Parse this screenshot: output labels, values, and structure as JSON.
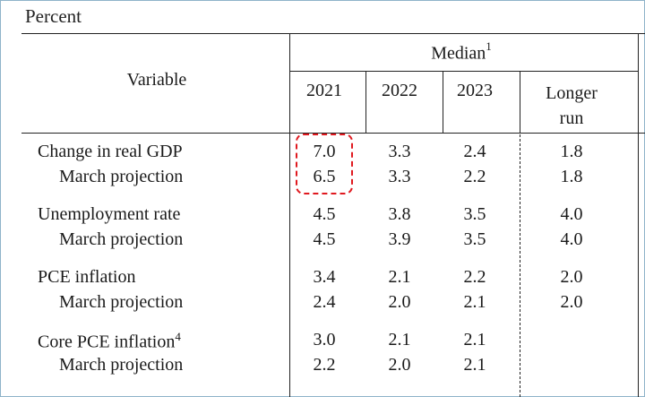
{
  "unit_label": "Percent",
  "header": {
    "variable": "Variable",
    "median": "Median",
    "median_footnote": "1",
    "years": [
      "2021",
      "2022",
      "2023"
    ],
    "longer_run_line1": "Longer",
    "longer_run_line2": "run"
  },
  "rows": [
    {
      "label": "Change in real GDP",
      "footnote": "",
      "values": [
        "7.0",
        "3.3",
        "2.4",
        "1.8"
      ]
    },
    {
      "label": "March projection",
      "footnote": "",
      "values": [
        "6.5",
        "3.3",
        "2.2",
        "1.8"
      ]
    },
    {
      "label": "Unemployment rate",
      "footnote": "",
      "values": [
        "4.5",
        "3.8",
        "3.5",
        "4.0"
      ]
    },
    {
      "label": "March projection",
      "footnote": "",
      "values": [
        "4.5",
        "3.9",
        "3.5",
        "4.0"
      ]
    },
    {
      "label": "PCE inflation",
      "footnote": "",
      "values": [
        "3.4",
        "2.1",
        "2.2",
        "2.0"
      ]
    },
    {
      "label": "March projection",
      "footnote": "",
      "values": [
        "2.4",
        "2.0",
        "2.1",
        "2.0"
      ]
    },
    {
      "label": "Core PCE inflation",
      "footnote": "4",
      "values": [
        "3.0",
        "2.1",
        "2.1",
        ""
      ]
    },
    {
      "label": "March projection",
      "footnote": "",
      "values": [
        "2.2",
        "2.0",
        "2.1",
        ""
      ]
    }
  ],
  "highlight_color": "#e0191f"
}
